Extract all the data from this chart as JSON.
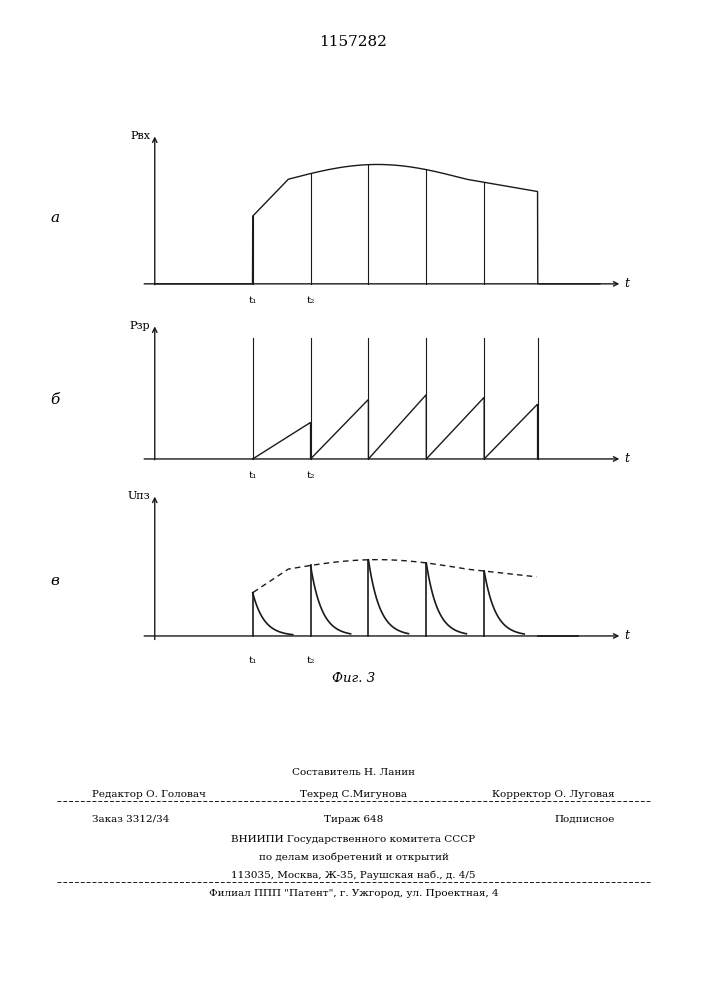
{
  "title": "1157282",
  "fig_label": "Фиг. 3",
  "panel_a_label": "а",
  "panel_b_label": "б",
  "panel_c_label": "в",
  "ylabel_a": "Pвх",
  "ylabel_b": "Pзр",
  "ylabel_c": "Uпз",
  "xlabel": "t",
  "t1_label": "t₁",
  "t2_label": "t₂",
  "background_color": "#ffffff",
  "line_color": "#1a1a1a",
  "footer_line1_center": "Составитель Н. Ланин",
  "footer_line2_left": "Редактор О. Головач",
  "footer_line2_center": "Техред С.Мигунова",
  "footer_line2_right": "Корректор О. Луговая",
  "footer_line3_left": "Заказ 3312/34",
  "footer_line3_center": "Тираж 648",
  "footer_line3_right": "Подписное",
  "footer_line4": "ВНИИПИ Государственного комитета СССР",
  "footer_line5": "по делам изобретений и открытий",
  "footer_line6": "113035, Москва, Ж-35, Раушская наб., д. 4/5",
  "footer_line7": "Филиал ППП \"Патент\", г. Ужгород, ул. Проектная, 4"
}
